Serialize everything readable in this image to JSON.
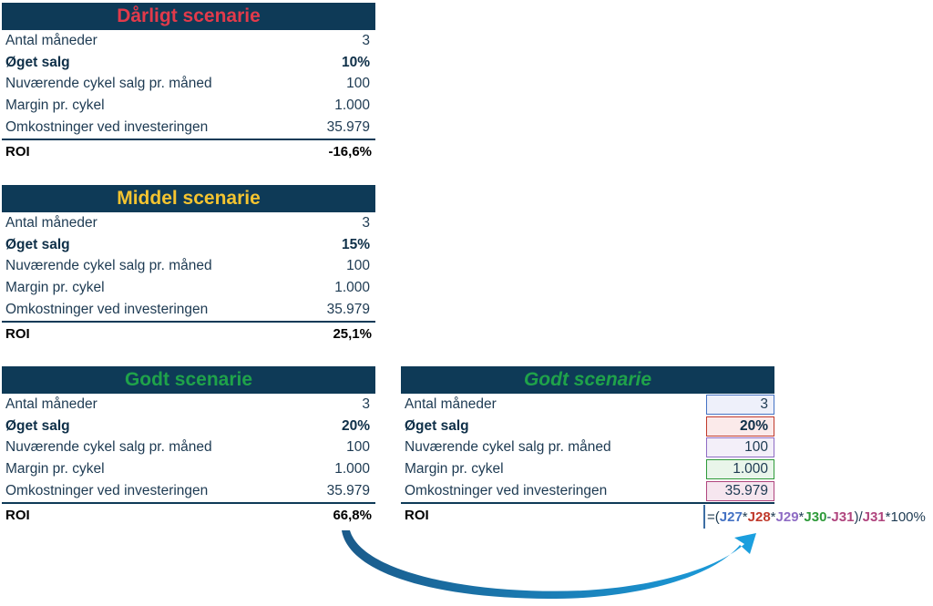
{
  "labels": {
    "months": "Antal måneder",
    "sales_increase": "Øget salg",
    "current_sales": "Nuværende cykel salg pr. måned",
    "margin": "Margin pr. cykel",
    "cost": "Omkostninger ved investeringen",
    "roi": "ROI"
  },
  "bad": {
    "title": "Dårligt scenarie",
    "title_color": "#e23a4b",
    "months": "3",
    "sales_increase": "10%",
    "current_sales": "100",
    "margin": "1.000",
    "cost": "35.979",
    "roi": "-16,6%"
  },
  "middle": {
    "title": "Middel scenarie",
    "title_color": "#f4c430",
    "months": "3",
    "sales_increase": "15%",
    "current_sales": "100",
    "margin": "1.000",
    "cost": "35.979",
    "roi": "25,1%"
  },
  "good": {
    "title": "Godt scenarie",
    "title_color": "#1fa24a",
    "months": "3",
    "sales_increase": "20%",
    "current_sales": "100",
    "margin": "1.000",
    "cost": "35.979",
    "roi": "66,8%"
  },
  "good_ref": {
    "title": "Godt scenarie",
    "months": "3",
    "sales_increase": "20%",
    "current_sales": "100",
    "margin": "1.000",
    "cost": "35.979"
  },
  "formula": {
    "eq": "=(",
    "r27": "J27",
    "op1": "*",
    "r28": "J28",
    "op2": "*",
    "r29": "J29",
    "op3": "*",
    "r30": "J30",
    "op4": "-",
    "r31": "J31",
    "close": ")/",
    "r31b": "J31",
    "tail": "*100%"
  },
  "colors": {
    "header_bg": "#0e3a57",
    "ref_blue": "#4472c4",
    "ref_red": "#c0392b",
    "ref_purple": "#8e6cc4",
    "ref_green": "#2e9a3a",
    "ref_pink": "#b0457e",
    "arrow": "#1b8ad0"
  }
}
